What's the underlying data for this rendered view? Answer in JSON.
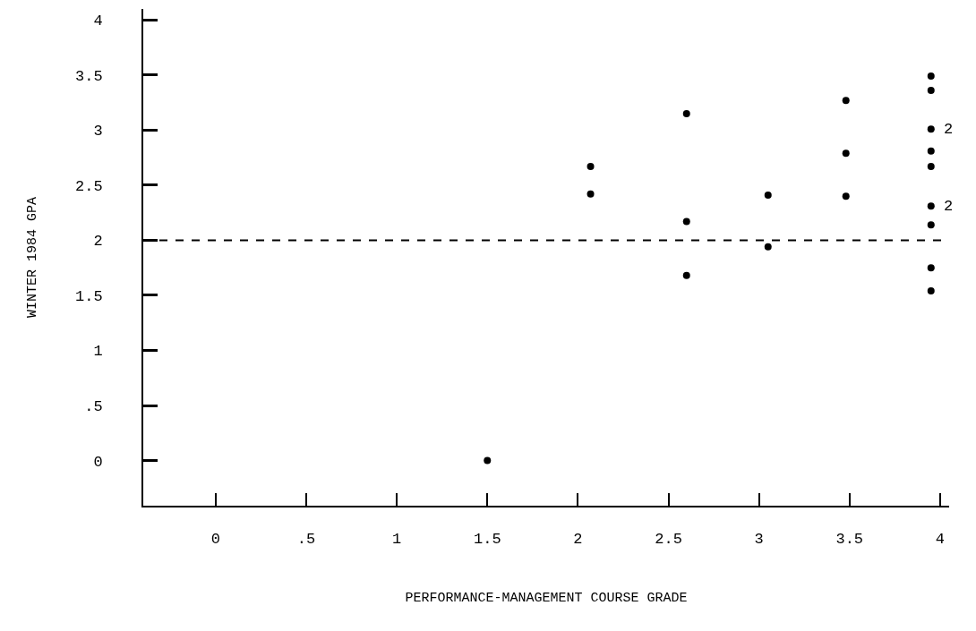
{
  "chart_data": {
    "type": "scatter",
    "xlabel": "PERFORMANCE-MANAGEMENT COURSE GRADE",
    "ylabel": "WINTER 1984 GPA",
    "x": [
      1.5,
      2.07,
      2.07,
      2.6,
      2.6,
      2.6,
      3.05,
      3.05,
      3.48,
      3.48,
      3.48,
      3.95,
      3.95,
      3.95,
      3.95,
      3.95,
      3.95,
      3.95,
      3.95,
      3.95
    ],
    "values": [
      0,
      2.67,
      2.42,
      3.15,
      2.17,
      1.68,
      2.41,
      1.94,
      3.27,
      2.79,
      2.4,
      3.49,
      3.36,
      3.01,
      2.81,
      2.67,
      2.31,
      2.14,
      1.75,
      1.54
    ],
    "color": "#000000",
    "marker": "circle",
    "xlim": [
      -0.4,
      4.05
    ],
    "ylim": [
      -0.41,
      4.1
    ],
    "xticks": [
      0,
      {
        "value": 0.5,
        "label": ".5"
      },
      1,
      1.5,
      2,
      2.5,
      3,
      3.5,
      4
    ],
    "yticks": [
      0,
      {
        "value": 0.5,
        "label": ".5"
      },
      1,
      1.5,
      2,
      2.5,
      3,
      3.5,
      4
    ],
    "ref_lines": [
      {
        "axis": "y",
        "value": 2,
        "label": null,
        "color": "#000000",
        "line_style": "dashed"
      }
    ],
    "annotations": [
      {
        "text": "2",
        "x": 3.95,
        "y": 3.01
      },
      {
        "text": "2",
        "x": 3.95,
        "y": 2.31
      }
    ]
  }
}
